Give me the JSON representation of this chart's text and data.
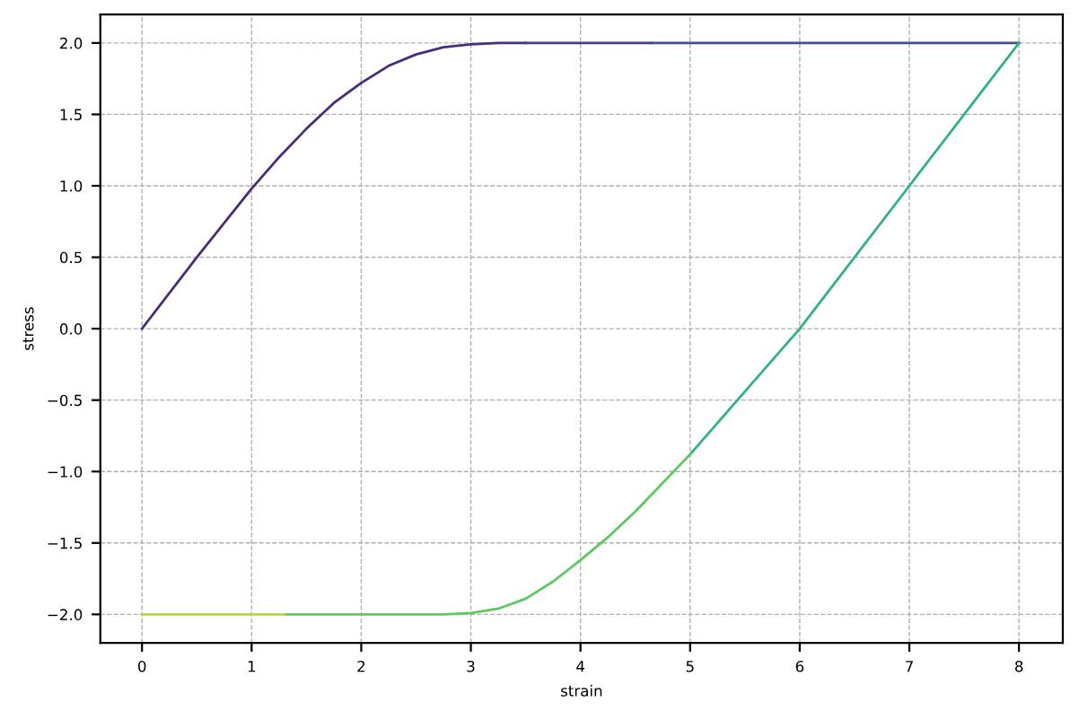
{
  "chart_data": {
    "type": "line",
    "xlabel": "strain",
    "ylabel": "stress",
    "series": [
      {
        "color": "#472d7b",
        "x": [
          0,
          0.5,
          1,
          1.25,
          1.5,
          1.75,
          2,
          2.25,
          2.5,
          2.75,
          3,
          3.25,
          3.5
        ],
        "values": [
          0,
          0.5,
          0.98,
          1.2,
          1.4,
          1.58,
          1.72,
          1.84,
          1.92,
          1.97,
          1.99,
          2.0,
          2.0
        ]
      },
      {
        "color": "#433e85",
        "x": [
          3.5,
          4.65
        ],
        "values": [
          2.0,
          2.0
        ]
      },
      {
        "color": "#3b528b",
        "x": [
          4.65,
          8
        ],
        "values": [
          2.0,
          2.0
        ]
      },
      {
        "color": "#2fb47c",
        "x": [
          8,
          7,
          6,
          5
        ],
        "values": [
          2.0,
          1.0,
          0.0,
          -0.88
        ]
      },
      {
        "color": "#5ec962",
        "x": [
          5,
          4.75,
          4.5,
          4.25,
          4,
          3.75,
          3.5,
          3.25,
          3,
          2.75,
          2.5,
          1.3
        ],
        "values": [
          -0.88,
          -1.08,
          -1.28,
          -1.46,
          -1.62,
          -1.77,
          -1.89,
          -1.96,
          -1.99,
          -2.0,
          -2.0,
          -2.0
        ]
      },
      {
        "color": "#b5de2b",
        "x": [
          1.3,
          0
        ],
        "values": [
          -2.0,
          -2.0
        ]
      }
    ],
    "xlim": [
      -0.38,
      8.4
    ],
    "ylim": [
      -2.2,
      2.2
    ],
    "xticks": [
      0,
      1,
      2,
      3,
      4,
      5,
      6,
      7,
      8
    ],
    "yticks": [
      {
        "value": -2,
        "label": "−2.0"
      },
      {
        "value": -1.5,
        "label": "−1.5"
      },
      {
        "value": -1,
        "label": "−1.0"
      },
      {
        "value": -0.5,
        "label": "−0.5"
      },
      {
        "value": 0,
        "label": "0.0"
      },
      {
        "value": 0.5,
        "label": "0.5"
      },
      {
        "value": 1,
        "label": "1.0"
      },
      {
        "value": 1.5,
        "label": "1.5"
      },
      {
        "value": 2,
        "label": "2.0"
      }
    ],
    "grid": true,
    "marker": "none",
    "line_style": "solid"
  }
}
